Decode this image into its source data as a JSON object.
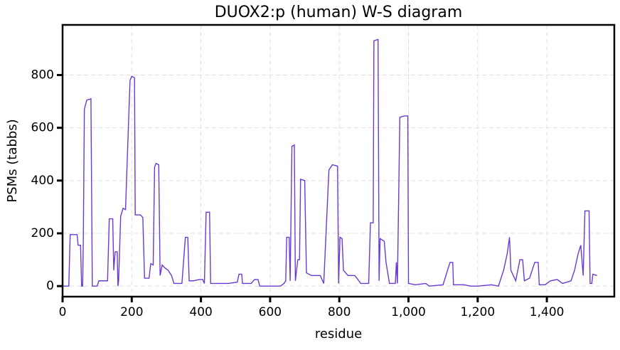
{
  "chart_data": {
    "type": "line",
    "title": "DUOX2:p (human) W-S diagram",
    "xlabel": "residue",
    "ylabel": "PSMs (tabbs)",
    "color": "#6a3bd2",
    "grid": true,
    "xlim": [
      0,
      1595
    ],
    "ylim": [
      -40,
      990
    ],
    "xticks": [
      0,
      200,
      400,
      600,
      800,
      {
        "value": 1000,
        "label": "1,000"
      },
      {
        "value": 1200,
        "label": "1,200"
      },
      {
        "value": 1400,
        "label": "1,400"
      }
    ],
    "yticks": [
      0,
      200,
      400,
      600,
      800
    ],
    "x": [
      0,
      18,
      22,
      42,
      45,
      52,
      55,
      58,
      60,
      63,
      70,
      82,
      86,
      100,
      105,
      130,
      135,
      145,
      148,
      152,
      158,
      160,
      162,
      168,
      175,
      182,
      195,
      200,
      208,
      210,
      225,
      232,
      237,
      250,
      255,
      262,
      266,
      270,
      278,
      282,
      288,
      295,
      305,
      315,
      322,
      345,
      355,
      362,
      366,
      378,
      395,
      405,
      410,
      415,
      425,
      428,
      450,
      480,
      505,
      510,
      518,
      520,
      545,
      555,
      565,
      570,
      600,
      630,
      640,
      645,
      648,
      655,
      658,
      663,
      670,
      673,
      680,
      685,
      688,
      700,
      705,
      720,
      745,
      755,
      770,
      780,
      795,
      798,
      802,
      808,
      812,
      825,
      845,
      862,
      885,
      890,
      898,
      900,
      912,
      915,
      918,
      930,
      935,
      945,
      962,
      965,
      968,
      975,
      988,
      998,
      1000,
      1020,
      1050,
      1060,
      1100,
      1120,
      1128,
      1130,
      1160,
      1180,
      1200,
      1240,
      1260,
      1275,
      1285,
      1292,
      1296,
      1310,
      1322,
      1330,
      1335,
      1350,
      1365,
      1375,
      1378,
      1395,
      1410,
      1430,
      1445,
      1470,
      1480,
      1490,
      1498,
      1505,
      1510,
      1522,
      1525,
      1530,
      1533,
      1545
    ],
    "values": [
      0,
      0,
      195,
      195,
      155,
      155,
      0,
      0,
      175,
      670,
      705,
      710,
      0,
      0,
      20,
      20,
      255,
      255,
      60,
      130,
      130,
      0,
      20,
      265,
      295,
      290,
      780,
      795,
      790,
      270,
      270,
      260,
      30,
      30,
      85,
      80,
      450,
      465,
      460,
      40,
      80,
      70,
      60,
      40,
      10,
      10,
      185,
      185,
      20,
      20,
      25,
      25,
      10,
      280,
      280,
      10,
      10,
      10,
      15,
      45,
      45,
      10,
      10,
      25,
      25,
      0,
      0,
      0,
      10,
      20,
      185,
      185,
      20,
      530,
      535,
      20,
      100,
      100,
      405,
      400,
      50,
      40,
      40,
      10,
      440,
      460,
      455,
      10,
      185,
      180,
      60,
      40,
      40,
      10,
      10,
      240,
      240,
      930,
      935,
      20,
      180,
      170,
      90,
      10,
      10,
      90,
      10,
      640,
      645,
      645,
      10,
      5,
      10,
      0,
      5,
      90,
      90,
      5,
      5,
      0,
      0,
      5,
      0,
      60,
      120,
      185,
      60,
      20,
      100,
      100,
      20,
      30,
      90,
      90,
      5,
      5,
      20,
      25,
      10,
      20,
      60,
      120,
      155,
      40,
      285,
      285,
      10,
      10,
      45,
      40
    ]
  }
}
